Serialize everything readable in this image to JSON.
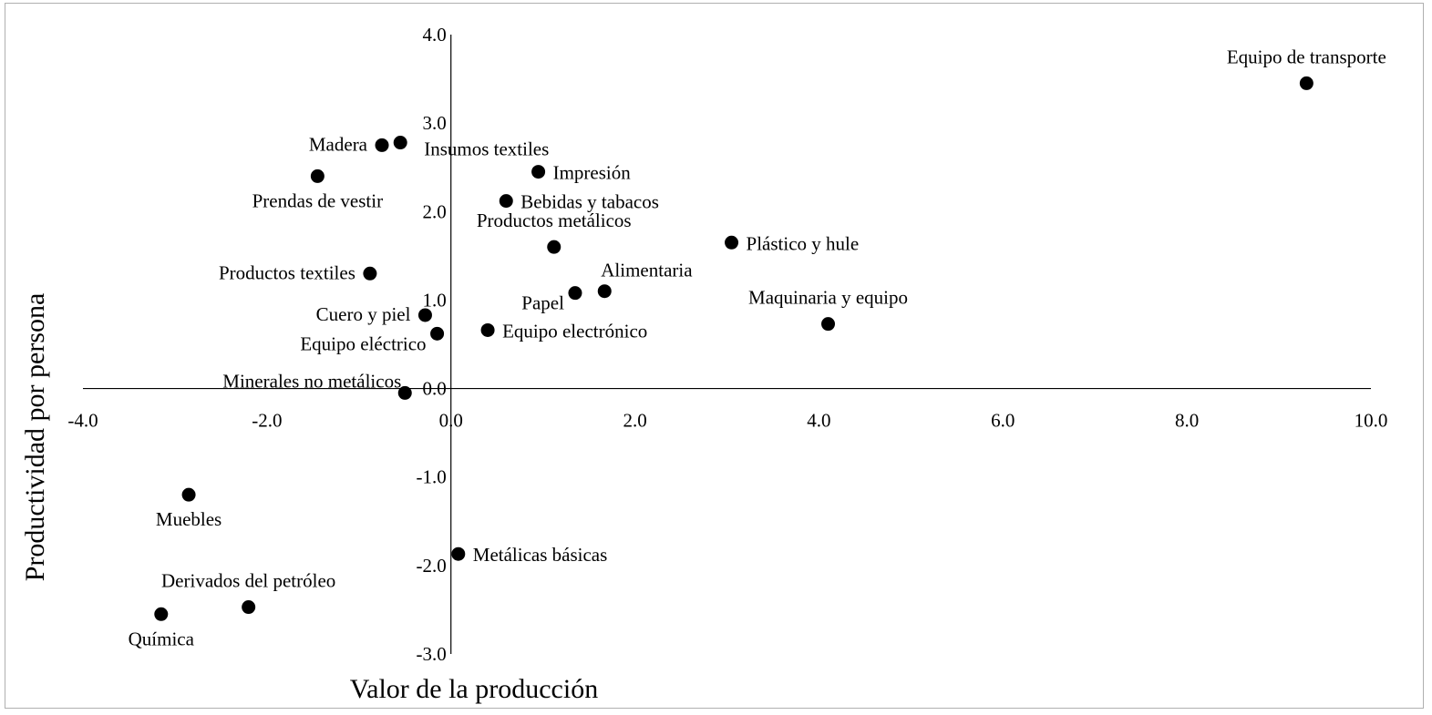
{
  "chart_data": {
    "type": "scatter",
    "title": "",
    "xlabel": "Valor de la producción",
    "ylabel": "Productividad por persona",
    "xlim": [
      -4.0,
      10.0
    ],
    "ylim": [
      -3.0,
      4.0
    ],
    "x_ticks": [
      "-4.0",
      "-2.0",
      "0.0",
      "2.0",
      "4.0",
      "6.0",
      "8.0",
      "10.0"
    ],
    "y_ticks": [
      "-3.0",
      "-2.0",
      "-1.0",
      "0.0",
      "1.0",
      "2.0",
      "3.0",
      "4.0"
    ],
    "grid": false,
    "legend": "none",
    "points": [
      {
        "label": "Equipo de transporte",
        "x": 9.3,
        "y": 3.45,
        "pos": "above"
      },
      {
        "label": "Madera",
        "x": -0.75,
        "y": 2.75,
        "pos": "left"
      },
      {
        "label": "Insumos textiles",
        "x": -0.55,
        "y": 2.78,
        "pos": "right-below"
      },
      {
        "label": "Prendas de vestir",
        "x": -1.45,
        "y": 2.4,
        "pos": "below"
      },
      {
        "label": "Impresión",
        "x": 0.95,
        "y": 2.45,
        "pos": "right"
      },
      {
        "label": "Bebidas y tabacos",
        "x": 0.6,
        "y": 2.12,
        "pos": "right"
      },
      {
        "label": "Productos metálicos",
        "x": 1.12,
        "y": 1.6,
        "pos": "above"
      },
      {
        "label": "Plástico y hule",
        "x": 3.05,
        "y": 1.65,
        "pos": "right"
      },
      {
        "label": "Productos textiles",
        "x": -0.88,
        "y": 1.3,
        "pos": "left"
      },
      {
        "label": "Alimentaria",
        "x": 1.67,
        "y": 1.1,
        "pos": "above-right"
      },
      {
        "label": "Papel",
        "x": 1.35,
        "y": 1.08,
        "pos": "left-below"
      },
      {
        "label": "Maquinaria y equipo",
        "x": 4.1,
        "y": 0.73,
        "pos": "above"
      },
      {
        "label": "Cuero y piel",
        "x": -0.28,
        "y": 0.83,
        "pos": "left"
      },
      {
        "label": "Equipo electrónico",
        "x": 0.4,
        "y": 0.66,
        "pos": "right"
      },
      {
        "label": "Equipo eléctrico",
        "x": -0.15,
        "y": 0.62,
        "pos": "left-below"
      },
      {
        "label": "Minerales no metálicos",
        "x": -0.5,
        "y": -0.05,
        "pos": "left-above"
      },
      {
        "label": "Muebles",
        "x": -2.85,
        "y": -1.2,
        "pos": "below"
      },
      {
        "label": "Metálicas básicas",
        "x": 0.08,
        "y": -1.87,
        "pos": "right"
      },
      {
        "label": "Derivados del petróleo",
        "x": -2.2,
        "y": -2.47,
        "pos": "above"
      },
      {
        "label": "Química",
        "x": -3.15,
        "y": -2.55,
        "pos": "below"
      }
    ]
  }
}
